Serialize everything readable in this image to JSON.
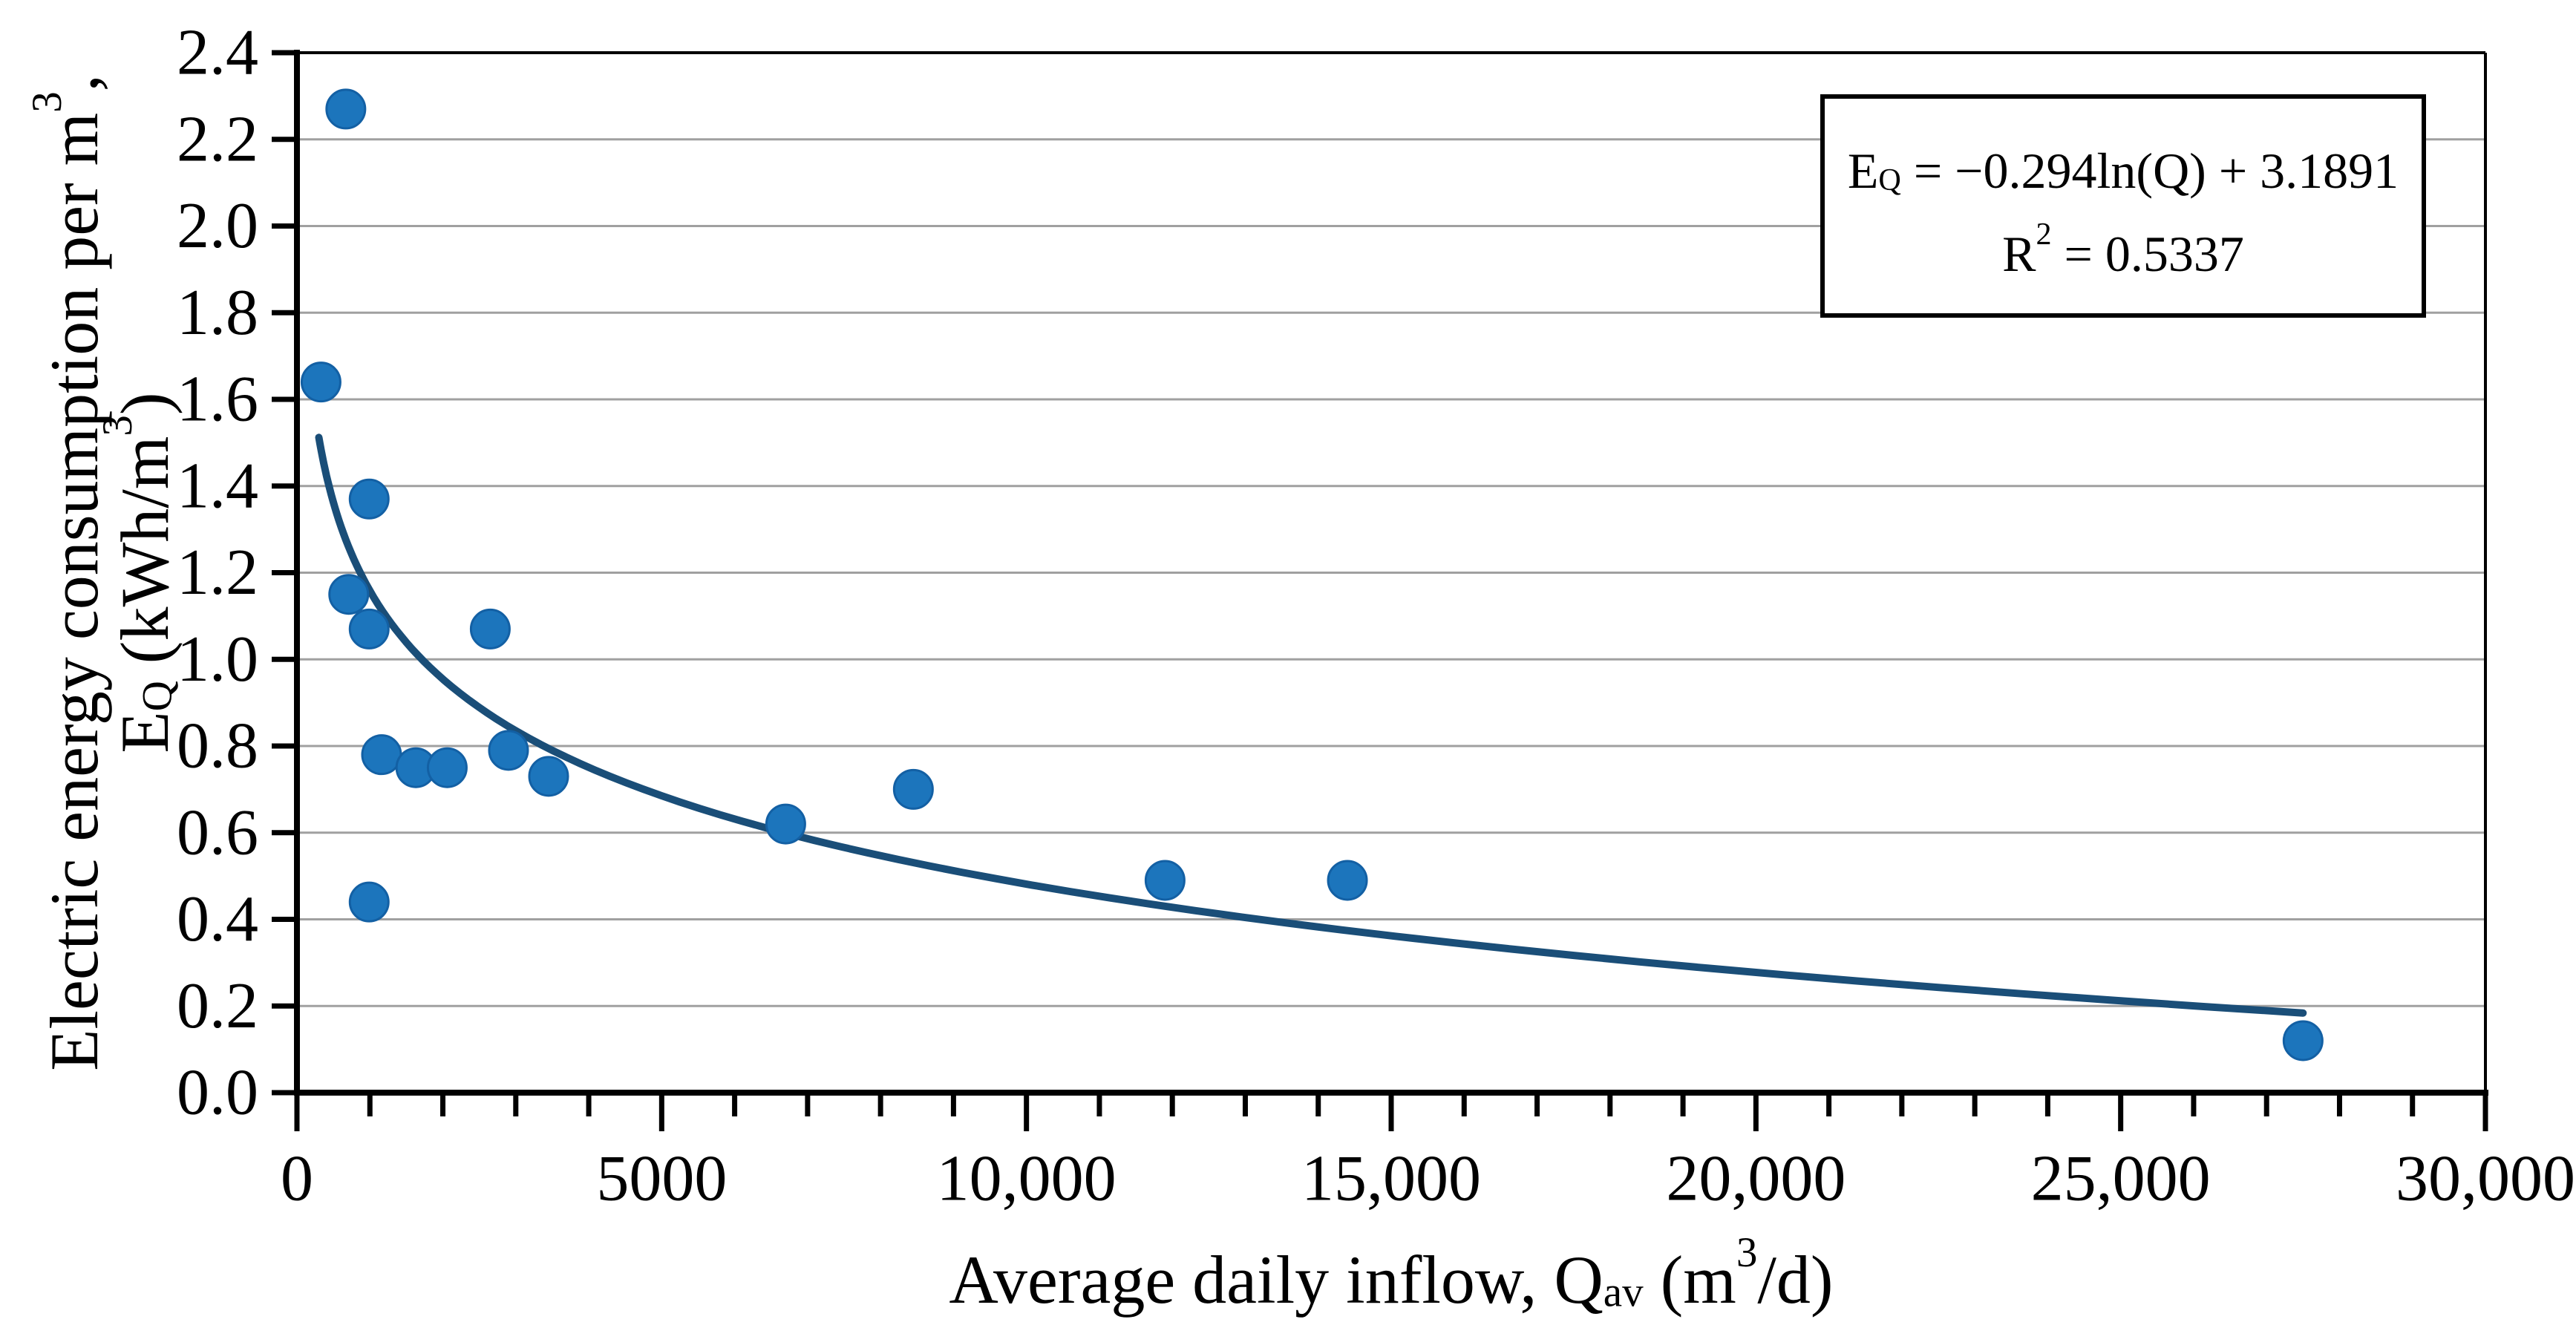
{
  "figure": {
    "background_color": "#ffffff",
    "point_color": "#1c75bc",
    "point_edge_color": "#1360a4",
    "trendline_color": "#1a4e78",
    "gridline_color": "#a0a0a0",
    "axis_color": "#000000",
    "annotation_border_color": "#000000",
    "annotation_background": "#ffffff"
  },
  "chart_data": {
    "type": "scatter",
    "title": "",
    "xlabel": "Average daily inflow, Qav (m3/d)",
    "ylabel": "Electric energy consumption per m3, EQ (kWh/m3)",
    "xlabel_rich": [
      {
        "t": "text",
        "v": "Average daily inflow, Q"
      },
      {
        "t": "sub",
        "v": "av"
      },
      {
        "t": "text",
        "v": " (m"
      },
      {
        "t": "sup",
        "v": "3"
      },
      {
        "t": "text",
        "v": "/d)"
      }
    ],
    "ylabel_line1_rich": [
      {
        "t": "text",
        "v": "Electric energy consumption per m"
      },
      {
        "t": "sup",
        "v": "3"
      },
      {
        "t": "text",
        "v": ","
      }
    ],
    "ylabel_line2_rich": [
      {
        "t": "text",
        "v": "E"
      },
      {
        "t": "sub",
        "v": "Q"
      },
      {
        "t": "text",
        "v": " (kWh/m"
      },
      {
        "t": "sup",
        "v": "3"
      },
      {
        "t": "text",
        "v": ")"
      }
    ],
    "xlim": [
      0,
      30000
    ],
    "ylim": [
      0.0,
      2.4
    ],
    "x_major_tick_step": 5000,
    "x_minor_tick_step": 1000,
    "x_tick_labels": [
      "0",
      "5000",
      "10,000",
      "15,000",
      "20,000",
      "25,000",
      "30,000"
    ],
    "y_tick_step": 0.2,
    "y_tick_labels": [
      "0.0",
      "0.2",
      "0.4",
      "0.6",
      "0.8",
      "1.0",
      "1.2",
      "1.4",
      "1.6",
      "1.8",
      "2.0",
      "2.2",
      "2.4"
    ],
    "grid": "horizontal-only",
    "legend": "none",
    "points": [
      {
        "q": 330,
        "e": 1.64
      },
      {
        "q": 670,
        "e": 2.27
      },
      {
        "q": 710,
        "e": 1.15
      },
      {
        "q": 990,
        "e": 1.37
      },
      {
        "q": 990,
        "e": 1.07
      },
      {
        "q": 990,
        "e": 0.44
      },
      {
        "q": 1160,
        "e": 0.78
      },
      {
        "q": 1630,
        "e": 0.75
      },
      {
        "q": 2060,
        "e": 0.75
      },
      {
        "q": 2650,
        "e": 1.07
      },
      {
        "q": 2900,
        "e": 0.79
      },
      {
        "q": 3450,
        "e": 0.73
      },
      {
        "q": 6700,
        "e": 0.62
      },
      {
        "q": 8450,
        "e": 0.7
      },
      {
        "q": 11900,
        "e": 0.49
      },
      {
        "q": 14400,
        "e": 0.49
      },
      {
        "q": 27500,
        "e": 0.12
      }
    ],
    "trendline": {
      "type": "logarithmic",
      "slope": -0.294,
      "intercept": 3.1891,
      "domain": [
        300,
        27500
      ],
      "equation_text": "EQ = −0.294ln(Q) + 3.1891",
      "r_squared_text": "R2 = 0.5337",
      "equation_rich": [
        {
          "t": "text",
          "v": "E"
        },
        {
          "t": "sub",
          "v": "Q"
        },
        {
          "t": "text",
          "v": " = −0.294ln(Q) + 3.1891"
        }
      ],
      "r_squared_rich": [
        {
          "t": "text",
          "v": "R"
        },
        {
          "t": "sup",
          "v": "2"
        },
        {
          "t": "text",
          "v": " = 0.5337"
        }
      ]
    }
  }
}
